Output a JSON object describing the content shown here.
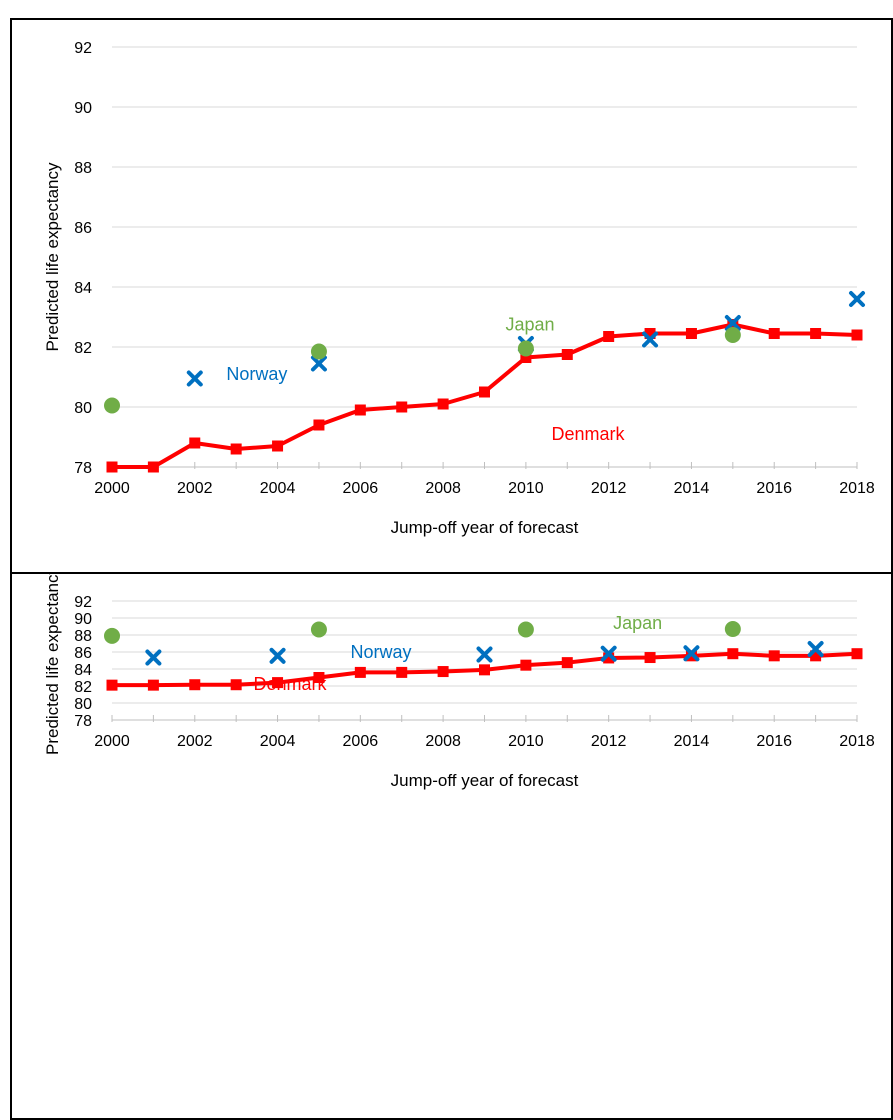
{
  "chart_data": [
    {
      "type": "line",
      "xlabel": "Jump-off year of forecast",
      "ylabel": "Predicted life expectancy",
      "xlim": [
        2000,
        2018
      ],
      "ylim": [
        78,
        92
      ],
      "xticks": [
        2000,
        2002,
        2004,
        2006,
        2008,
        2010,
        2012,
        2014,
        2016,
        2018
      ],
      "yticks": [
        78,
        80,
        82,
        84,
        86,
        88,
        90,
        92
      ],
      "grid": true,
      "series": [
        {
          "name": "Denmark",
          "marker": "square",
          "color": "#ff0000",
          "x": [
            2000,
            2001,
            2002,
            2003,
            2004,
            2005,
            2006,
            2007,
            2008,
            2009,
            2010,
            2011,
            2012,
            2013,
            2014,
            2015,
            2016,
            2017,
            2018
          ],
          "y": [
            78.0,
            78.0,
            78.8,
            78.6,
            78.7,
            79.4,
            79.9,
            80.0,
            80.1,
            80.5,
            81.65,
            81.75,
            82.35,
            82.45,
            82.45,
            82.75,
            82.45,
            82.45,
            82.4
          ]
        },
        {
          "name": "Norway",
          "marker": "x",
          "color": "#0070c0",
          "x": [
            2002,
            2005,
            2010,
            2013,
            2015,
            2018
          ],
          "y": [
            80.95,
            81.45,
            82.1,
            82.25,
            82.8,
            83.6
          ]
        },
        {
          "name": "Japan",
          "marker": "circle",
          "color": "#70ad47",
          "x": [
            2000,
            2005,
            2010,
            2015
          ],
          "y": [
            80.05,
            81.85,
            81.95,
            82.4
          ]
        }
      ],
      "annotations": [
        {
          "text": "Japan",
          "series": "Japan",
          "x": 2010.1,
          "y": 82.55
        },
        {
          "text": "Norway",
          "series": "Norway",
          "x": 2003.5,
          "y": 80.9
        },
        {
          "text": "Denmark",
          "series": "Denmark",
          "x": 2011.5,
          "y": 78.9
        }
      ]
    },
    {
      "type": "line",
      "xlabel": "Jump-off year of forecast",
      "ylabel": "Predicted life expectancy",
      "xlim": [
        2000,
        2018
      ],
      "ylim": [
        78,
        92
      ],
      "xticks": [
        2000,
        2002,
        2004,
        2006,
        2008,
        2010,
        2012,
        2014,
        2016,
        2018
      ],
      "yticks": [
        78,
        80,
        82,
        84,
        86,
        88,
        90,
        92
      ],
      "grid": true,
      "series": [
        {
          "name": "Denmark",
          "marker": "square",
          "color": "#ff0000",
          "x": [
            2000,
            2001,
            2002,
            2003,
            2004,
            2005,
            2006,
            2007,
            2008,
            2009,
            2010,
            2011,
            2012,
            2013,
            2014,
            2015,
            2016,
            2017,
            2018
          ],
          "y": [
            82.1,
            82.1,
            82.15,
            82.15,
            82.4,
            83.0,
            83.6,
            83.6,
            83.7,
            83.9,
            84.45,
            84.75,
            85.3,
            85.35,
            85.55,
            85.8,
            85.55,
            85.55,
            85.8
          ]
        },
        {
          "name": "Norway",
          "marker": "x",
          "color": "#0070c0",
          "x": [
            2001,
            2004,
            2009,
            2012,
            2014,
            2017
          ],
          "y": [
            85.35,
            85.55,
            85.7,
            85.8,
            85.85,
            86.35
          ]
        },
        {
          "name": "Japan",
          "marker": "circle",
          "color": "#70ad47",
          "x": [
            2000,
            2005,
            2010,
            2015
          ],
          "y": [
            87.9,
            88.65,
            88.65,
            88.7
          ]
        }
      ],
      "annotations": [
        {
          "text": "Japan",
          "series": "Japan",
          "x": 2012.7,
          "y": 88.7
        },
        {
          "text": "Norway",
          "series": "Norway",
          "x": 2006.5,
          "y": 85.3
        },
        {
          "text": "Denmark",
          "series": "Denmark",
          "x": 2004.3,
          "y": 81.55
        }
      ]
    }
  ]
}
